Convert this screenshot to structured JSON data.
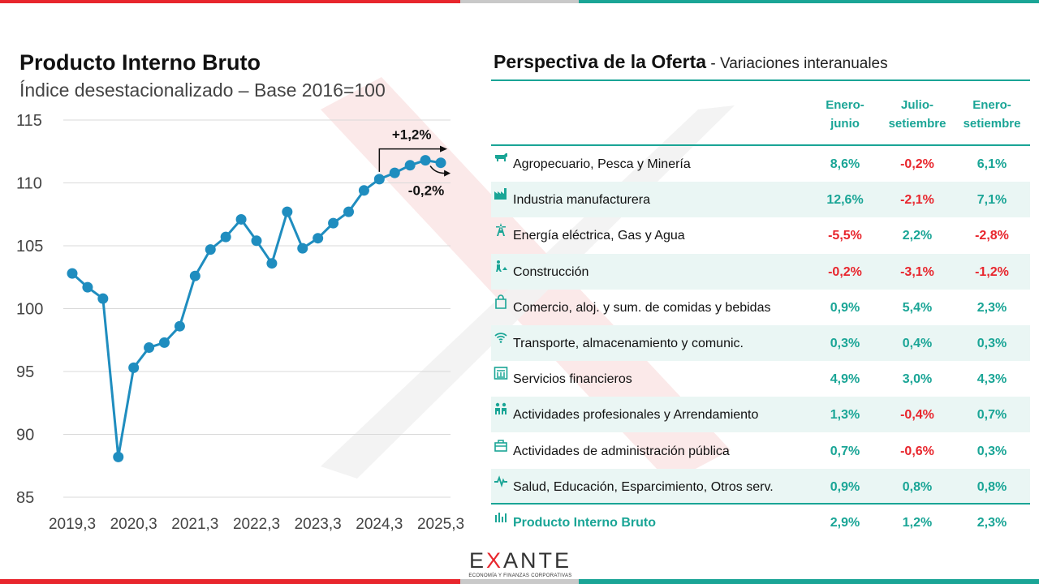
{
  "chart_data": {
    "type": "line",
    "title": "Producto Interno Bruto",
    "subtitle": "Índice desestacionalizado – Base 2016=100",
    "ylim": [
      85,
      115
    ],
    "y_ticks": [
      "115",
      "110",
      "105",
      "100",
      "95",
      "90",
      "85"
    ],
    "x_tick_labels": [
      "2019,3",
      "2020,3",
      "2021,3",
      "2022,3",
      "2023,3",
      "2024,3",
      "2025,3"
    ],
    "x": [
      "2019,3",
      "2019,4",
      "2020,1",
      "2020,2",
      "2020,3",
      "2020,4",
      "2021,1",
      "2021,2",
      "2021,3",
      "2021,4",
      "2022,1",
      "2022,2",
      "2022,3",
      "2022,4",
      "2023,1",
      "2023,2",
      "2023,3",
      "2023,4",
      "2024,1",
      "2024,2",
      "2024,3",
      "2024,4",
      "2025,1",
      "2025,2",
      "2025,3"
    ],
    "values": [
      102.8,
      101.7,
      100.8,
      88.2,
      95.3,
      96.9,
      97.3,
      98.6,
      102.6,
      104.7,
      105.7,
      107.1,
      105.4,
      103.6,
      107.7,
      104.8,
      105.6,
      106.8,
      107.7,
      109.4,
      110.3,
      110.8,
      111.4,
      111.8,
      111.6
    ],
    "annotations": [
      "+1,2%",
      "-0,2%"
    ],
    "line_color": "#1f8dbf"
  },
  "table": {
    "title": "Perspectiva de la Oferta",
    "subtitle": " - Variaciones interanuales",
    "columns": [
      [
        "Enero-",
        "junio"
      ],
      [
        "Julio-",
        "setiembre"
      ],
      [
        "Enero-",
        "setiembre"
      ]
    ],
    "rows": [
      {
        "label": "Agropecuario, Pesca y Minería",
        "icon": "cow-icon",
        "values": [
          "8,6%",
          "-0,2%",
          "6,1%"
        ]
      },
      {
        "label": "Industria manufacturera",
        "icon": "factory-icon",
        "values": [
          "12,6%",
          "-2,1%",
          "7,1%"
        ]
      },
      {
        "label": "Energía eléctrica, Gas y Agua",
        "icon": "power-tower-icon",
        "values": [
          "-5,5%",
          "2,2%",
          "-2,8%"
        ]
      },
      {
        "label": "Construcción",
        "icon": "worker-icon",
        "values": [
          "-0,2%",
          "-3,1%",
          "-1,2%"
        ]
      },
      {
        "label": "Comercio,  aloj. y sum. de comidas y bebidas",
        "icon": "shopping-bag-icon",
        "values": [
          "0,9%",
          "5,4%",
          "2,3%"
        ]
      },
      {
        "label": "Transporte, almacenamiento y comunic.",
        "icon": "wifi-icon",
        "values": [
          "0,3%",
          "0,4%",
          "0,3%"
        ]
      },
      {
        "label": "Servicios financieros",
        "icon": "bank-icon",
        "values": [
          "4,9%",
          "3,0%",
          "4,3%"
        ]
      },
      {
        "label": "Actividades profesionales y Arrendamiento",
        "icon": "people-icon",
        "values": [
          "1,3%",
          "-0,4%",
          "0,7%"
        ]
      },
      {
        "label": "Actividades de administración pública",
        "icon": "briefcase-icon",
        "values": [
          "0,7%",
          "-0,6%",
          "0,3%"
        ]
      },
      {
        "label": "Salud, Educación, Esparcimiento, Otros serv.",
        "icon": "heartbeat-icon",
        "values": [
          "0,9%",
          "0,8%",
          "0,8%"
        ]
      }
    ],
    "total": {
      "label": "Producto Interno Bruto",
      "icon": "bar-chart-icon",
      "values": [
        "2,9%",
        "1,2%",
        "2,3%"
      ]
    }
  },
  "logo": {
    "name": "EXANTE",
    "tagline": "ECONOMÍA Y FINANZAS CORPORATIVAS"
  },
  "colors": {
    "red": "#e8262d",
    "teal": "#1aa596",
    "grey": "#c9c9c9",
    "line": "#1f8dbf"
  }
}
